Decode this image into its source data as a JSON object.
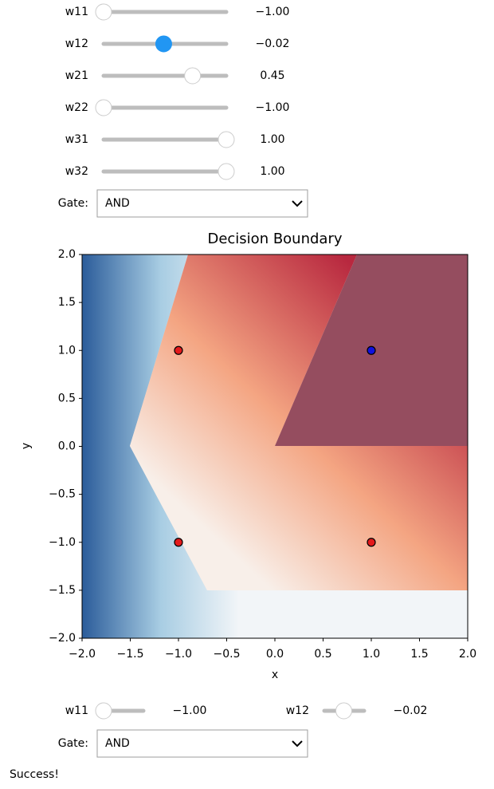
{
  "slider_range": [
    -1,
    1
  ],
  "top_controls": {
    "sliders": [
      {
        "label": "w11",
        "value": -1,
        "value_label": "−1.00"
      },
      {
        "label": "w12",
        "value": -0.02,
        "value_label": "−0.02"
      },
      {
        "label": "w21",
        "value": 0.45,
        "value_label": "0.45"
      },
      {
        "label": "w22",
        "value": -1,
        "value_label": "−1.00"
      },
      {
        "label": "w31",
        "value": 1,
        "value_label": "1.00"
      },
      {
        "label": "w32",
        "value": 1,
        "value_label": "1.00"
      }
    ],
    "gate": {
      "label": "Gate:",
      "selected": "AND"
    }
  },
  "chart_data": {
    "type": "scatter",
    "title": "Decision Boundary",
    "x_label": "x",
    "y_label": "y",
    "x": [
      -1,
      -1,
      1,
      1
    ],
    "y": [
      1,
      -1,
      1,
      -1
    ],
    "colors": [
      "#e31a1c",
      "#e31a1c",
      "#1010e0",
      "#e31a1c"
    ],
    "xlim": [
      -2,
      2
    ],
    "ylim": [
      -2,
      2
    ],
    "xticks": [
      {
        "value": -2,
        "label": "−2.0"
      },
      {
        "value": -1.5,
        "label": "−1.5"
      },
      {
        "value": -1,
        "label": "−1.0"
      },
      {
        "value": -0.5,
        "label": "−0.5"
      },
      {
        "value": 0,
        "label": "0.0"
      },
      {
        "value": 0.5,
        "label": "0.5"
      },
      {
        "value": 1,
        "label": "1.0"
      },
      {
        "value": 1.5,
        "label": "1.5"
      },
      {
        "value": 2,
        "label": "2.0"
      }
    ],
    "yticks": [
      {
        "value": -2,
        "label": "−2.0"
      },
      {
        "value": -1.5,
        "label": "−1.5"
      },
      {
        "value": -1,
        "label": "−1.0"
      },
      {
        "value": -0.5,
        "label": "−0.5"
      },
      {
        "value": 0,
        "label": "0.0"
      },
      {
        "value": 0.5,
        "label": "0.5"
      },
      {
        "value": 1,
        "label": "1.0"
      },
      {
        "value": 1.5,
        "label": "1.5"
      },
      {
        "value": 2,
        "label": "2.0"
      }
    ]
  },
  "bottom_controls": {
    "sliders": [
      {
        "label": "w11",
        "value": -1,
        "value_label": "−1.00"
      },
      {
        "label": "w12",
        "value": -0.02,
        "value_label": "−0.02"
      }
    ],
    "gate": {
      "label": "Gate:",
      "selected": "AND"
    }
  },
  "status": "Success!"
}
